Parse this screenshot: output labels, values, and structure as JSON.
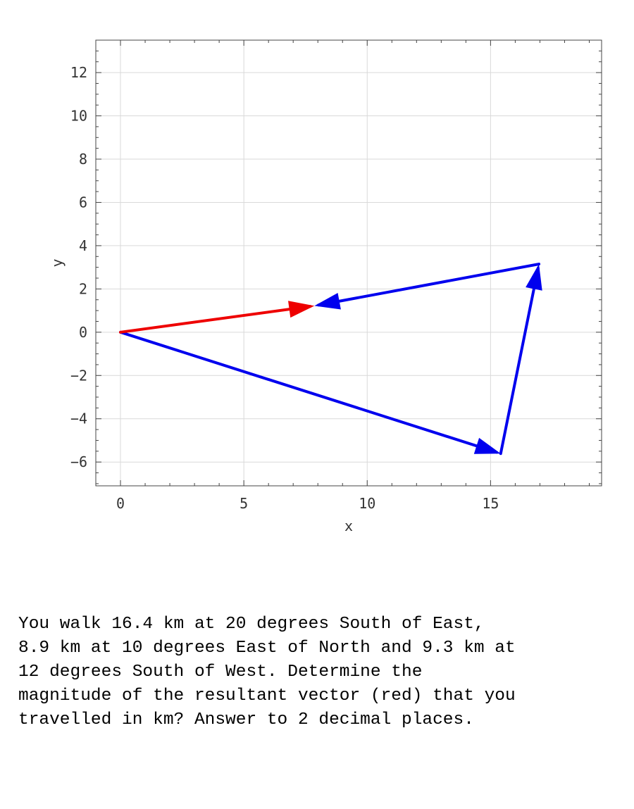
{
  "chart_data": {
    "type": "vector-diagram",
    "xlabel": "x",
    "ylabel": "y",
    "xlim": [
      -1,
      19.5
    ],
    "ylim": [
      -7.1,
      13.5
    ],
    "xticks": [
      0,
      5,
      10,
      15
    ],
    "yticks": [
      -6,
      -4,
      -2,
      0,
      2,
      4,
      6,
      8,
      10,
      12
    ],
    "grid": true,
    "vectors": [
      {
        "from": [
          0,
          0
        ],
        "to": [
          15.41,
          -5.61
        ],
        "color": "#0000ee"
      },
      {
        "from": [
          15.41,
          -5.61
        ],
        "to": [
          16.96,
          3.15
        ],
        "color": "#0000ee"
      },
      {
        "from": [
          16.96,
          3.15
        ],
        "to": [
          7.86,
          1.22
        ],
        "color": "#0000ee"
      },
      {
        "from": [
          0,
          0
        ],
        "to": [
          7.86,
          1.22
        ],
        "color": "#ee0000"
      }
    ]
  },
  "question": {
    "text": "You walk 16.4 km at 20 degrees South of East,\n8.9 km at 10 degrees East of North and 9.3 km at\n12 degrees South of West.  Determine the\nmagnitude of the resultant vector (red) that you\ntravelled in km? Answer to 2 decimal places."
  }
}
